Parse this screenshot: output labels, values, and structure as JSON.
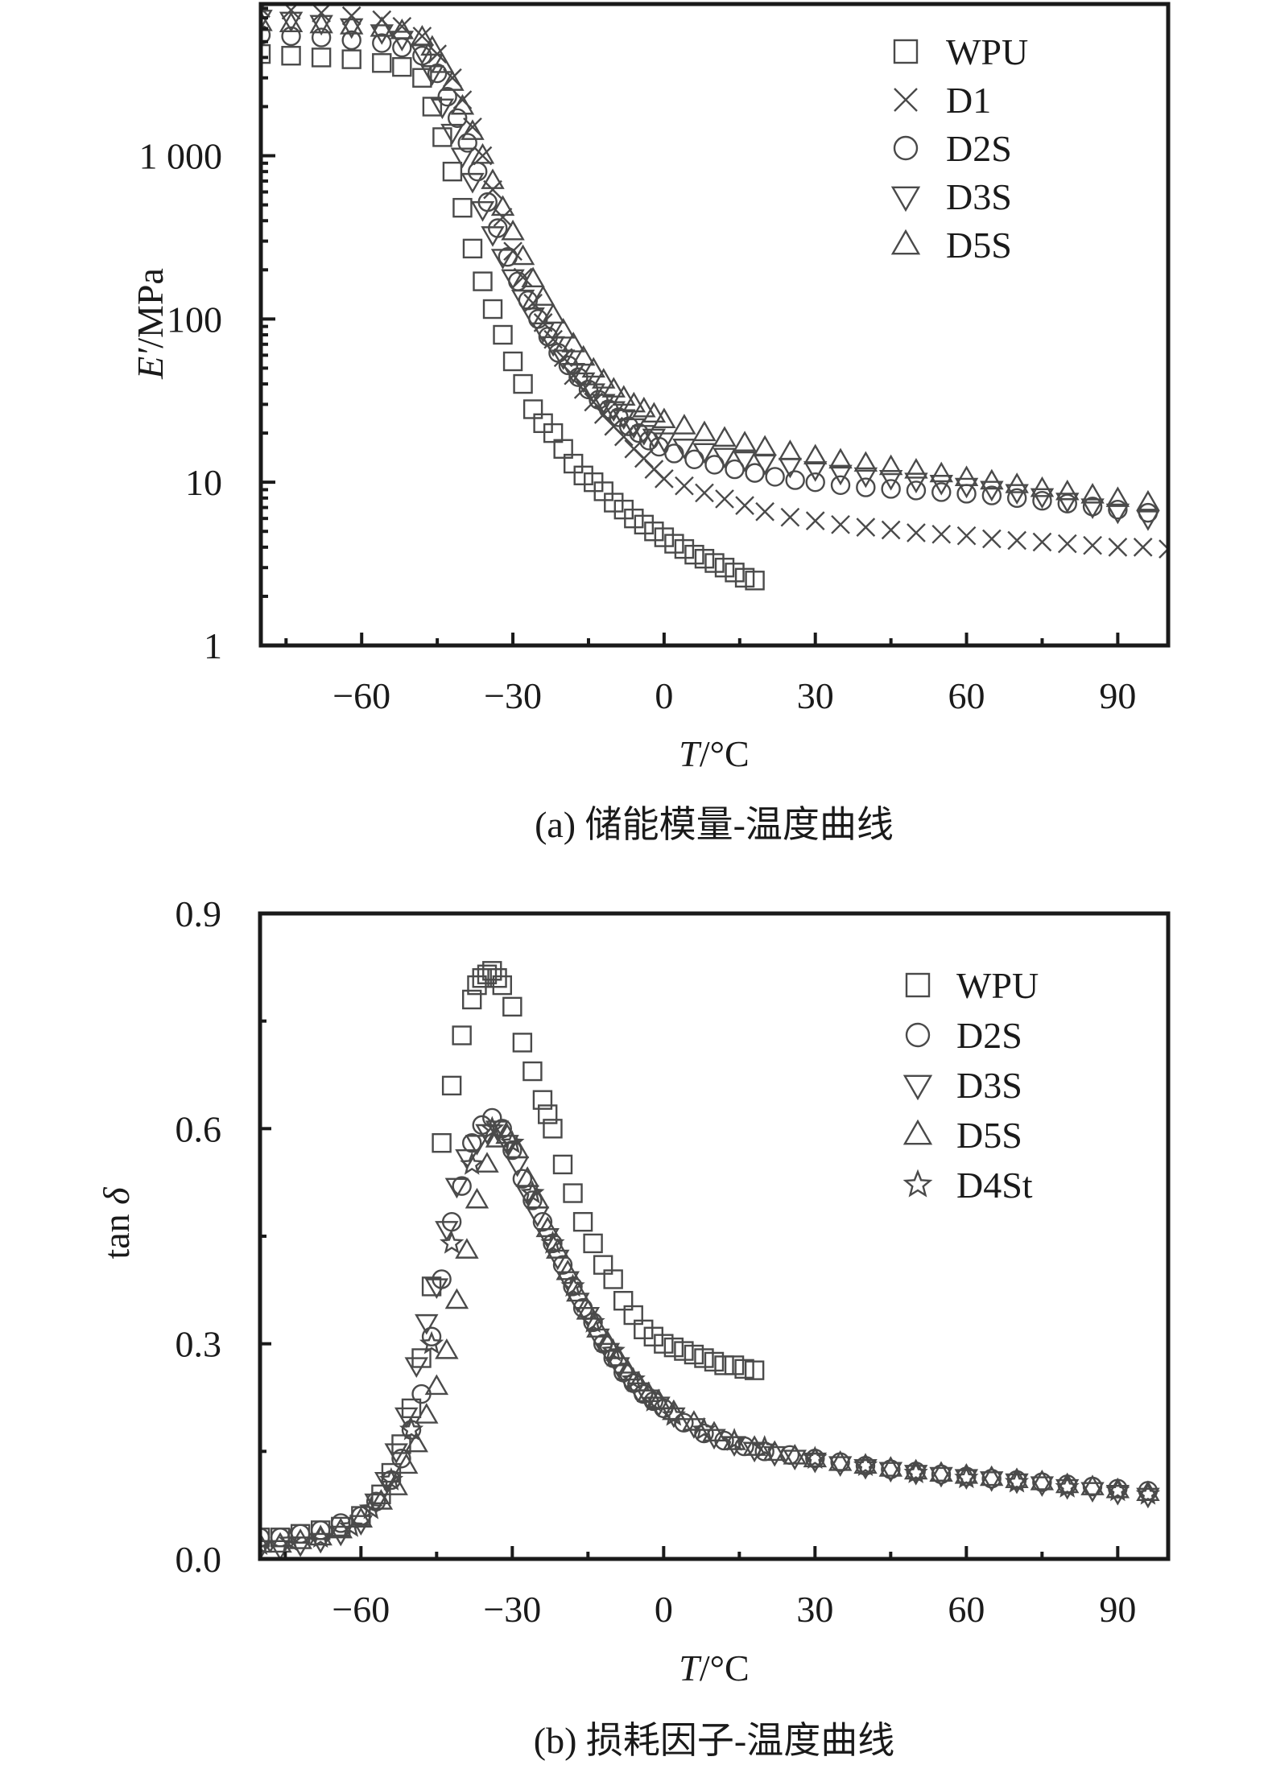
{
  "chart_data": [
    {
      "id": "a",
      "type": "scatter",
      "caption": "(a) 储能模量-温度曲线",
      "xlabel_italic": "T",
      "xlabel_rest": "/°C",
      "ylabel_italic": "E′",
      "ylabel_rest": "/MPa",
      "yscale": "log",
      "xlim": [
        -80,
        100
      ],
      "ylim": [
        1,
        8500
      ],
      "grid": false,
      "legend_position": "top-right",
      "x_ticks": [
        -60,
        -30,
        0,
        30,
        60,
        90
      ],
      "x_tick_labels": [
        "−60",
        "−30",
        "0",
        "30",
        "60",
        "90"
      ],
      "y_ticks": [
        1,
        10,
        100,
        1000
      ],
      "y_tick_labels": [
        "1",
        "10",
        "100",
        "1 000"
      ],
      "series": [
        {
          "name": "WPU",
          "marker": "square",
          "x": [
            -80,
            -74,
            -68,
            -62,
            -56,
            -52,
            -48,
            -46,
            -44,
            -42,
            -40,
            -38,
            -36,
            -34,
            -32,
            -30,
            -28,
            -26,
            -24,
            -22,
            -20,
            -18,
            -16,
            -14,
            -12,
            -10,
            -8,
            -6,
            -4,
            -2,
            0,
            2,
            4,
            6,
            8,
            10,
            12,
            14,
            16,
            18
          ],
          "y": [
            4200,
            4100,
            4000,
            3900,
            3700,
            3500,
            3000,
            2000,
            1300,
            800,
            480,
            270,
            170,
            115,
            80,
            55,
            40,
            28,
            23,
            20,
            16,
            13,
            11,
            10,
            8.8,
            7.5,
            6.8,
            6.0,
            5.5,
            5.0,
            4.6,
            4.2,
            3.9,
            3.6,
            3.4,
            3.2,
            3.0,
            2.8,
            2.6,
            2.5
          ]
        },
        {
          "name": "D1",
          "marker": "cross",
          "x": [
            -80,
            -74,
            -68,
            -62,
            -56,
            -52,
            -48,
            -45,
            -42,
            -40,
            -38,
            -36,
            -34,
            -32,
            -30,
            -28,
            -26,
            -24,
            -22,
            -20,
            -18,
            -16,
            -14,
            -12,
            -10,
            -8,
            -6,
            -4,
            -2,
            0,
            4,
            8,
            12,
            16,
            20,
            25,
            30,
            35,
            40,
            45,
            50,
            55,
            60,
            65,
            70,
            75,
            80,
            85,
            90,
            95,
            100
          ],
          "y": [
            8000,
            7800,
            7500,
            7200,
            6800,
            6200,
            5400,
            4200,
            3000,
            2200,
            1500,
            1000,
            620,
            420,
            260,
            180,
            125,
            95,
            75,
            58,
            45,
            37,
            31,
            26,
            22,
            19,
            16,
            14,
            12,
            10.5,
            9.5,
            8.6,
            7.9,
            7.2,
            6.6,
            6.1,
            5.8,
            5.5,
            5.3,
            5.1,
            4.9,
            4.8,
            4.7,
            4.5,
            4.4,
            4.3,
            4.2,
            4.1,
            4.0,
            4.0,
            3.9
          ]
        },
        {
          "name": "D2S",
          "marker": "circle",
          "x": [
            -80,
            -74,
            -68,
            -62,
            -56,
            -52,
            -48,
            -45,
            -43,
            -41,
            -39,
            -37,
            -35,
            -33,
            -31,
            -29,
            -27,
            -25,
            -23,
            -21,
            -19,
            -17,
            -15,
            -13,
            -11,
            -9,
            -7,
            -5,
            -3,
            -1,
            2,
            6,
            10,
            14,
            18,
            22,
            26,
            30,
            35,
            40,
            45,
            50,
            55,
            60,
            65,
            70,
            75,
            80,
            85,
            90,
            96
          ],
          "y": [
            5500,
            5400,
            5300,
            5100,
            4900,
            4600,
            4100,
            3200,
            2300,
            1700,
            1200,
            800,
            520,
            360,
            240,
            170,
            130,
            100,
            78,
            62,
            52,
            44,
            37,
            32,
            28,
            25,
            22,
            20,
            18,
            16.5,
            15,
            13.8,
            12.8,
            12,
            11.4,
            10.8,
            10.3,
            10,
            9.6,
            9.3,
            9.1,
            8.9,
            8.7,
            8.5,
            8.3,
            8,
            7.7,
            7.4,
            7.1,
            6.8,
            6.5
          ]
        },
        {
          "name": "D3S",
          "marker": "triangle-down",
          "x": [
            -80,
            -74,
            -68,
            -62,
            -56,
            -52,
            -48,
            -46,
            -44,
            -42,
            -40,
            -38,
            -36,
            -34,
            -32,
            -30,
            -28,
            -26,
            -24,
            -22,
            -20,
            -18,
            -16,
            -14,
            -12,
            -10,
            -8,
            -6,
            -4,
            -2,
            0,
            4,
            8,
            12,
            16,
            20,
            25,
            30,
            35,
            40,
            45,
            50,
            55,
            60,
            65,
            70,
            75,
            80,
            85,
            90,
            96
          ],
          "y": [
            7000,
            6800,
            6500,
            6200,
            5700,
            5200,
            4300,
            3200,
            2000,
            1400,
            1000,
            700,
            470,
            330,
            240,
            180,
            135,
            105,
            85,
            70,
            58,
            48,
            42,
            36,
            31,
            28,
            25,
            22,
            20,
            19,
            18,
            16.5,
            15.5,
            14.5,
            13.8,
            13.2,
            12.6,
            12,
            11.4,
            11,
            10.6,
            10.2,
            9.9,
            9.5,
            9.1,
            8.7,
            8.2,
            7.7,
            7.1,
            6.6,
            6.0
          ]
        },
        {
          "name": "D5S",
          "marker": "triangle-up",
          "x": [
            -80,
            -74,
            -68,
            -62,
            -56,
            -52,
            -48,
            -46,
            -44,
            -42,
            -40,
            -38,
            -36,
            -34,
            -32,
            -30,
            -28,
            -26,
            -24,
            -22,
            -20,
            -18,
            -16,
            -14,
            -12,
            -10,
            -8,
            -6,
            -4,
            -2,
            0,
            4,
            8,
            12,
            16,
            20,
            25,
            30,
            35,
            40,
            45,
            50,
            55,
            60,
            65,
            70,
            75,
            80,
            85,
            90,
            96
          ],
          "y": [
            6500,
            6400,
            6300,
            6200,
            6000,
            5800,
            5300,
            4600,
            3600,
            2800,
            2000,
            1400,
            1000,
            700,
            480,
            340,
            240,
            175,
            135,
            105,
            85,
            70,
            58,
            49,
            42,
            37,
            33,
            30,
            28,
            26,
            24,
            22,
            20,
            18.5,
            17.3,
            16.3,
            15.3,
            14.4,
            13.6,
            13,
            12.4,
            11.8,
            11.2,
            10.6,
            10.1,
            9.6,
            9.1,
            8.7,
            8.3,
            7.9,
            7.5
          ]
        }
      ]
    },
    {
      "id": "b",
      "type": "scatter",
      "caption": "(b) 损耗因子-温度曲线",
      "xlabel_italic": "T",
      "xlabel_rest": "/°C",
      "ylabel_prefix": "tan ",
      "ylabel_italic": "δ",
      "yscale": "linear",
      "xlim": [
        -80,
        100
      ],
      "ylim": [
        0,
        0.9
      ],
      "grid": false,
      "legend_position": "top-right",
      "x_ticks": [
        -60,
        -30,
        0,
        30,
        60,
        90
      ],
      "x_tick_labels": [
        "−60",
        "−30",
        "0",
        "30",
        "60",
        "90"
      ],
      "y_ticks": [
        0,
        0.3,
        0.6,
        0.9
      ],
      "y_tick_labels": [
        "0.0",
        "0.3",
        "0.6",
        "0.9"
      ],
      "series": [
        {
          "name": "WPU",
          "marker": "square",
          "x": [
            -80,
            -76,
            -72,
            -68,
            -64,
            -60,
            -56,
            -54,
            -52,
            -50,
            -48,
            -46,
            -44,
            -42,
            -40,
            -38,
            -37,
            -36,
            -35,
            -34,
            -33,
            -32,
            -30,
            -28,
            -26,
            -24,
            -23,
            -22,
            -20,
            -18,
            -16,
            -14,
            -12,
            -10,
            -8,
            -6,
            -4,
            -2,
            0,
            2,
            4,
            6,
            8,
            10,
            12,
            14,
            16,
            18
          ],
          "y": [
            0.03,
            0.03,
            0.035,
            0.04,
            0.045,
            0.06,
            0.09,
            0.12,
            0.16,
            0.21,
            0.28,
            0.38,
            0.58,
            0.66,
            0.73,
            0.78,
            0.8,
            0.81,
            0.815,
            0.82,
            0.81,
            0.8,
            0.77,
            0.72,
            0.68,
            0.64,
            0.62,
            0.6,
            0.55,
            0.51,
            0.47,
            0.44,
            0.41,
            0.39,
            0.36,
            0.34,
            0.32,
            0.31,
            0.3,
            0.295,
            0.29,
            0.285,
            0.28,
            0.275,
            0.27,
            0.27,
            0.265,
            0.263
          ]
        },
        {
          "name": "D2S",
          "marker": "circle",
          "x": [
            -80,
            -76,
            -72,
            -68,
            -64,
            -60,
            -57,
            -54,
            -52,
            -50,
            -48,
            -46,
            -44,
            -42,
            -40,
            -38,
            -36,
            -34,
            -32,
            -30,
            -28,
            -26,
            -24,
            -22,
            -20,
            -18,
            -16,
            -14,
            -12,
            -10,
            -8,
            -6,
            -4,
            -2,
            0,
            4,
            8,
            12,
            16,
            20,
            25,
            30,
            35,
            40,
            45,
            50,
            55,
            60,
            65,
            70,
            75,
            80,
            85,
            90,
            96
          ],
          "y": [
            0.03,
            0.03,
            0.035,
            0.04,
            0.05,
            0.06,
            0.08,
            0.11,
            0.14,
            0.18,
            0.23,
            0.31,
            0.39,
            0.47,
            0.52,
            0.58,
            0.605,
            0.615,
            0.6,
            0.57,
            0.53,
            0.5,
            0.47,
            0.44,
            0.41,
            0.38,
            0.35,
            0.33,
            0.3,
            0.28,
            0.26,
            0.245,
            0.23,
            0.22,
            0.21,
            0.19,
            0.175,
            0.165,
            0.157,
            0.15,
            0.145,
            0.14,
            0.135,
            0.13,
            0.125,
            0.122,
            0.118,
            0.115,
            0.112,
            0.11,
            0.107,
            0.104,
            0.101,
            0.098,
            0.095
          ]
        },
        {
          "name": "D3S",
          "marker": "triangle-down",
          "x": [
            -80,
            -76,
            -72,
            -68,
            -64,
            -60,
            -57,
            -55,
            -53,
            -51,
            -49,
            -47,
            -45,
            -43,
            -41,
            -39,
            -37,
            -35,
            -33,
            -31,
            -29,
            -27,
            -25,
            -23,
            -21,
            -19,
            -17,
            -15,
            -13,
            -11,
            -9,
            -7,
            -5,
            -3,
            -1,
            2,
            6,
            10,
            14,
            18,
            22,
            26,
            30,
            35,
            40,
            45,
            50,
            55,
            60,
            65,
            70,
            75,
            80,
            85,
            90,
            96
          ],
          "y": [
            0.015,
            0.015,
            0.02,
            0.025,
            0.035,
            0.05,
            0.08,
            0.11,
            0.15,
            0.2,
            0.27,
            0.33,
            0.38,
            0.46,
            0.52,
            0.56,
            0.58,
            0.595,
            0.6,
            0.58,
            0.55,
            0.51,
            0.48,
            0.45,
            0.42,
            0.39,
            0.36,
            0.34,
            0.31,
            0.29,
            0.27,
            0.25,
            0.235,
            0.225,
            0.215,
            0.2,
            0.185,
            0.17,
            0.16,
            0.152,
            0.146,
            0.141,
            0.137,
            0.132,
            0.128,
            0.124,
            0.12,
            0.117,
            0.114,
            0.111,
            0.108,
            0.104,
            0.1,
            0.096,
            0.092,
            0.088
          ]
        },
        {
          "name": "D5S",
          "marker": "triangle-up",
          "x": [
            -80,
            -76,
            -72,
            -68,
            -64,
            -60,
            -56,
            -53,
            -51,
            -49,
            -47,
            -45,
            -43,
            -41,
            -39,
            -37,
            -35,
            -33,
            -31,
            -29,
            -27,
            -25,
            -23,
            -21,
            -19,
            -17,
            -15,
            -13,
            -11,
            -9,
            -7,
            -5,
            -3,
            -1,
            2,
            6,
            10,
            14,
            18,
            22,
            26,
            30,
            35,
            40,
            45,
            50,
            55,
            60,
            65,
            70,
            75,
            80,
            85,
            90,
            96
          ],
          "y": [
            0.02,
            0.02,
            0.025,
            0.03,
            0.04,
            0.055,
            0.08,
            0.1,
            0.13,
            0.16,
            0.2,
            0.24,
            0.29,
            0.36,
            0.43,
            0.5,
            0.55,
            0.585,
            0.59,
            0.57,
            0.53,
            0.5,
            0.46,
            0.43,
            0.4,
            0.37,
            0.345,
            0.32,
            0.3,
            0.28,
            0.26,
            0.245,
            0.23,
            0.22,
            0.205,
            0.19,
            0.175,
            0.163,
            0.155,
            0.148,
            0.143,
            0.139,
            0.134,
            0.13,
            0.126,
            0.122,
            0.119,
            0.116,
            0.113,
            0.11,
            0.107,
            0.103,
            0.1,
            0.096,
            0.092
          ]
        },
        {
          "name": "D4St",
          "marker": "star",
          "x": [
            -80,
            -74,
            -68,
            -62,
            -58,
            -54,
            -50,
            -46,
            -42,
            -38,
            -34,
            -30,
            -26,
            -22,
            -18,
            -14,
            -10,
            -6,
            -2,
            2,
            8,
            14,
            20,
            30,
            40,
            50,
            60,
            70,
            80,
            90,
            96
          ],
          "y": [
            0.02,
            0.025,
            0.03,
            0.045,
            0.07,
            0.11,
            0.18,
            0.3,
            0.44,
            0.55,
            0.6,
            0.58,
            0.51,
            0.44,
            0.38,
            0.33,
            0.29,
            0.25,
            0.22,
            0.2,
            0.18,
            0.165,
            0.155,
            0.14,
            0.13,
            0.12,
            0.113,
            0.107,
            0.1,
            0.095,
            0.09
          ]
        }
      ]
    }
  ],
  "colors": {
    "axis": "#1a1a1a",
    "marker_stroke": "#4a4a4a",
    "background": "#ffffff"
  }
}
